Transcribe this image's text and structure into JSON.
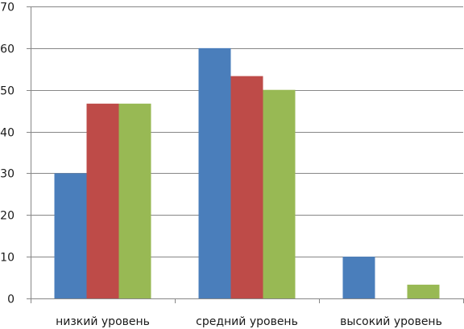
{
  "chart_data": {
    "type": "bar",
    "title": "",
    "xlabel": "",
    "ylabel": "",
    "categories": [
      "низкий уровень",
      "средний уровень",
      "высокий уровень"
    ],
    "series": [
      {
        "color": "#4a7ebb",
        "values": [
          30,
          60,
          10
        ]
      },
      {
        "color": "#be4b48",
        "values": [
          46.7,
          53.3,
          0
        ]
      },
      {
        "color": "#98b954",
        "values": [
          46.7,
          50,
          3.3
        ]
      }
    ],
    "ylim": [
      0,
      70
    ],
    "yticks": [
      "0",
      "10",
      "20",
      "30",
      "40",
      "50",
      "60",
      "70"
    ],
    "grid": true,
    "legend": "none"
  }
}
